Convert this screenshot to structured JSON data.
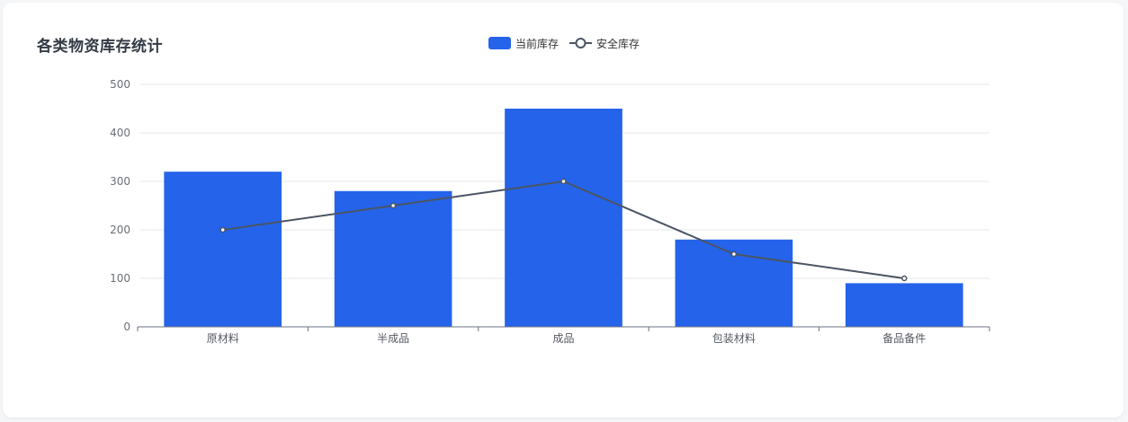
{
  "title": "各类物资库存统计",
  "colors": {
    "bar": "#2563EB",
    "line": "#4B5563",
    "grid": "#E5E7EB",
    "axis": "#6B7280"
  },
  "chart_data": {
    "type": "bar",
    "title": "各类物资库存统计",
    "categories": [
      "原材料",
      "半成品",
      "成品",
      "包装材料",
      "备品备件"
    ],
    "series": [
      {
        "name": "当前库存",
        "kind": "bar",
        "values": [
          320,
          280,
          450,
          180,
          90
        ]
      },
      {
        "name": "安全库存",
        "kind": "line",
        "values": [
          200,
          250,
          300,
          150,
          100
        ]
      }
    ],
    "ylim": [
      0,
      500
    ],
    "yticks": [
      0,
      100,
      200,
      300,
      400,
      500
    ],
    "xlabel": "",
    "ylabel": "",
    "grid": true,
    "legend_position": "top-center"
  }
}
